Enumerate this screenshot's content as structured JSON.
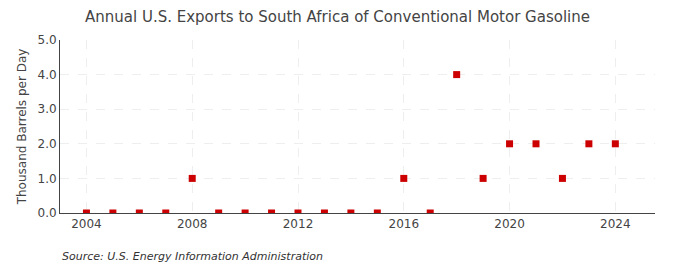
{
  "chart_data": {
    "type": "scatter",
    "title": "Annual U.S. Exports to South Africa of Conventional Motor Gasoline",
    "ylabel": "Thousand Barrels per Day",
    "annotations": [
      "Source: U.S. Energy Information Administration"
    ],
    "x": [
      2004,
      2005,
      2006,
      2007,
      2008,
      2009,
      2010,
      2011,
      2012,
      2013,
      2014,
      2015,
      2016,
      2017,
      2018,
      2019,
      2020,
      2021,
      2022,
      2023,
      2024
    ],
    "values": [
      0,
      0,
      0,
      0,
      1,
      0,
      0,
      0,
      0,
      0,
      0,
      0,
      1,
      0,
      4,
      1,
      2,
      2,
      1,
      2,
      2
    ],
    "color": "#cc0000",
    "marker": "square",
    "xlim": [
      2003.0,
      2025.5
    ],
    "xticks": [
      2004,
      2008,
      2012,
      2016,
      2020,
      2024
    ],
    "ylim": [
      0,
      5.0
    ],
    "yticks": [
      {
        "value": 0.0,
        "label": "0.0"
      },
      {
        "value": 1.0,
        "label": "1.0"
      },
      {
        "value": 2.0,
        "label": "2.0"
      },
      {
        "value": 3.0,
        "label": "3.0"
      },
      {
        "value": 4.0,
        "label": "4.0"
      },
      {
        "value": 5.0,
        "label": "5.0"
      }
    ],
    "grid": true
  }
}
